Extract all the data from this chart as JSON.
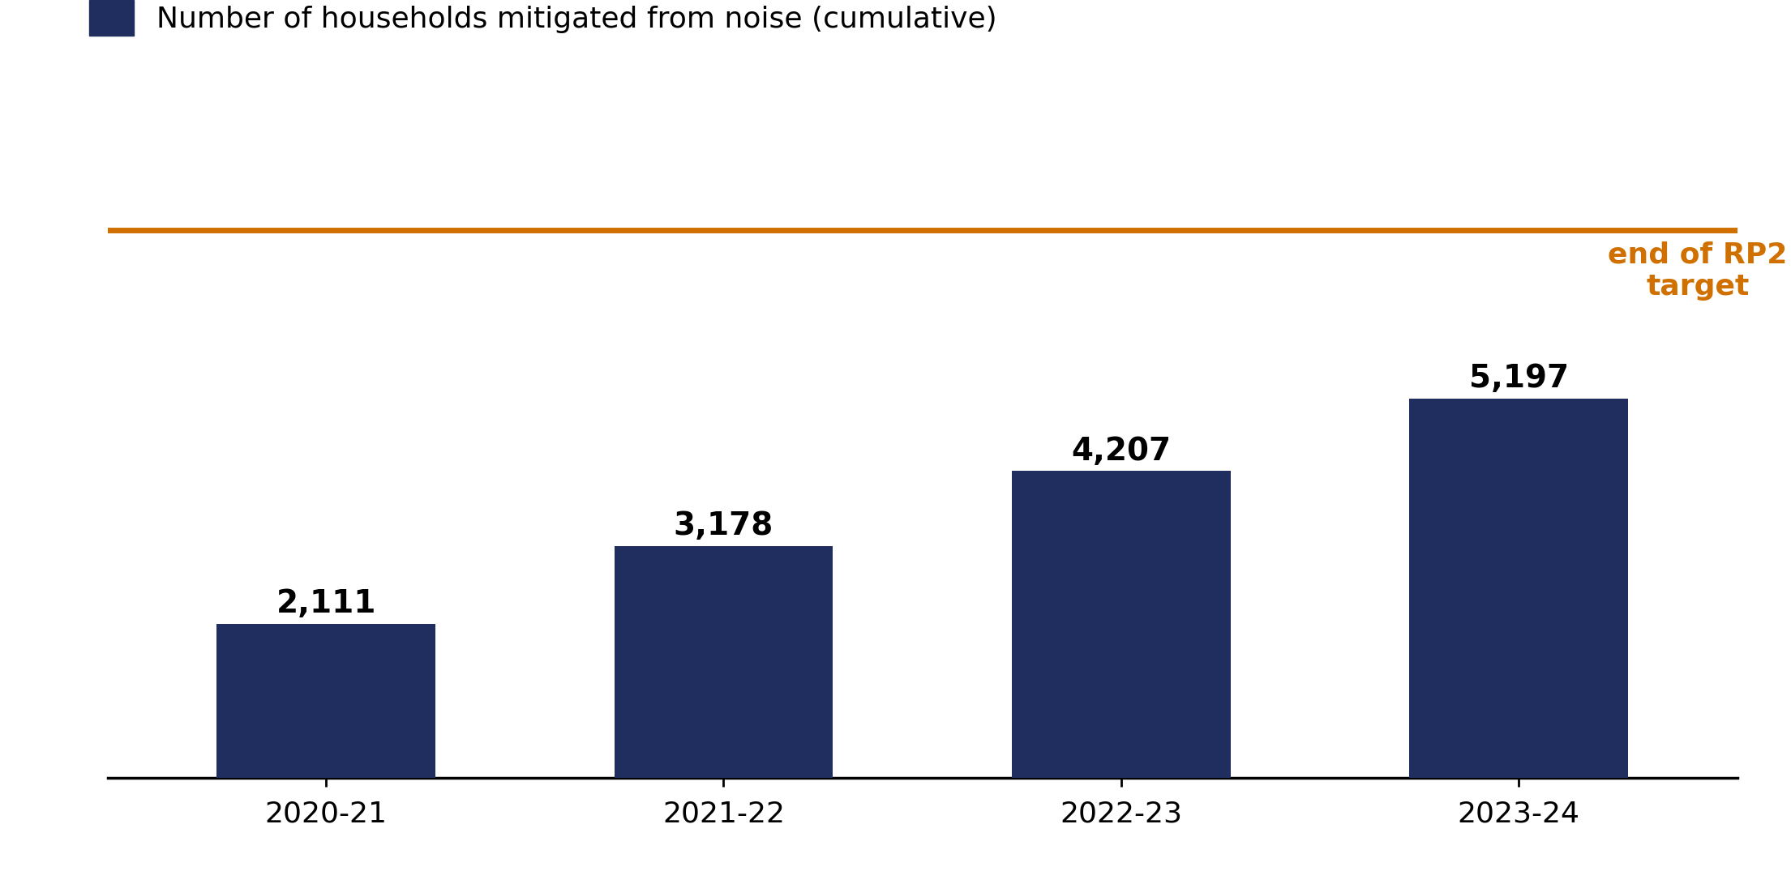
{
  "categories": [
    "2020-21",
    "2021-22",
    "2022-23",
    "2023-24"
  ],
  "values": [
    2111,
    3178,
    4207,
    5197
  ],
  "bar_color": "#1F2E5E",
  "target_value": 7500,
  "target_color": "#D07000",
  "target_label": "end of RP2\ntarget",
  "legend_label": "Number of households mitigated from noise (cumulative)",
  "bar_label_fontsize": 28,
  "tick_label_fontsize": 26,
  "legend_fontsize": 26,
  "target_label_fontsize": 26,
  "ylim": [
    0,
    9200
  ],
  "background_color": "#ffffff"
}
